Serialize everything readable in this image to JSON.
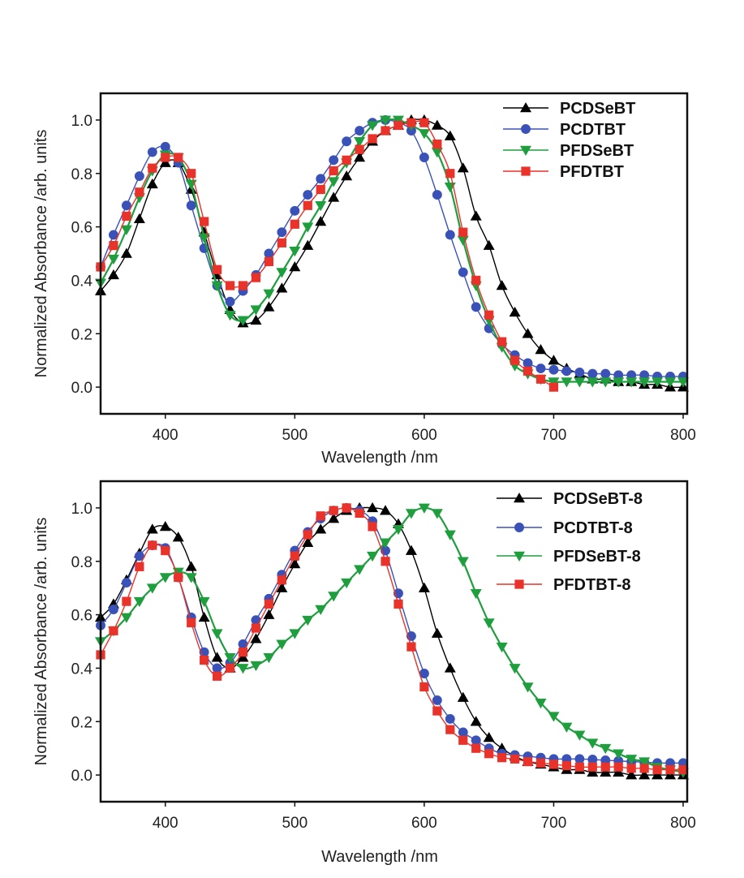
{
  "colors": {
    "black": "#000000",
    "blue": "#3a52b8",
    "green": "#1f9e3e",
    "red": "#e8322a"
  },
  "chart_data": [
    {
      "type": "line",
      "xlabel": "Wavelength /nm",
      "ylabel": "Normalized Absorbance /arb. units",
      "xlim": [
        350,
        800
      ],
      "ylim": [
        -0.1,
        1.1
      ],
      "xticks": [
        400,
        500,
        600,
        700,
        800
      ],
      "yticks": [
        "0.0",
        "0.2",
        "0.4",
        "0.6",
        "0.8",
        "1.0"
      ],
      "legend": "top-right",
      "x_start": 350,
      "x_step": 10,
      "series": [
        {
          "name": "PCDSeBT",
          "color": "#000000",
          "marker": "triangle-up",
          "values": [
            0.36,
            0.42,
            0.5,
            0.63,
            0.76,
            0.84,
            0.84,
            0.74,
            0.58,
            0.42,
            0.29,
            0.24,
            0.25,
            0.3,
            0.37,
            0.45,
            0.53,
            0.62,
            0.71,
            0.79,
            0.86,
            0.92,
            0.96,
            0.98,
            1.0,
            1.0,
            0.98,
            0.94,
            0.82,
            0.64,
            0.53,
            0.38,
            0.28,
            0.2,
            0.14,
            0.1,
            0.07,
            0.05,
            0.03,
            0.03,
            0.02,
            0.02,
            0.01,
            0.01,
            0.0,
            0.0
          ]
        },
        {
          "name": "PCDTBT",
          "color": "#3a52b8",
          "marker": "circle",
          "values": [
            0.45,
            0.57,
            0.68,
            0.79,
            0.88,
            0.9,
            0.84,
            0.68,
            0.52,
            0.38,
            0.32,
            0.36,
            0.42,
            0.5,
            0.58,
            0.66,
            0.72,
            0.78,
            0.85,
            0.92,
            0.96,
            0.99,
            1.0,
            0.99,
            0.96,
            0.86,
            0.72,
            0.57,
            0.43,
            0.3,
            0.22,
            0.16,
            0.12,
            0.09,
            0.07,
            0.065,
            0.06,
            0.055,
            0.05,
            0.05,
            0.045,
            0.045,
            0.045,
            0.04,
            0.04,
            0.04
          ]
        },
        {
          "name": "PFDSeBT",
          "color": "#1f9e3e",
          "marker": "triangle-down",
          "values": [
            0.39,
            0.48,
            0.59,
            0.71,
            0.81,
            0.87,
            0.86,
            0.76,
            0.56,
            0.38,
            0.27,
            0.25,
            0.29,
            0.35,
            0.43,
            0.51,
            0.6,
            0.68,
            0.77,
            0.84,
            0.92,
            0.98,
            1.0,
            1.0,
            0.98,
            0.95,
            0.88,
            0.75,
            0.55,
            0.38,
            0.25,
            0.15,
            0.08,
            0.05,
            0.03,
            0.02,
            0.02,
            0.02,
            0.02,
            0.02,
            0.02,
            0.02,
            0.02,
            0.02,
            0.02,
            0.02
          ]
        },
        {
          "name": "PFDTBT",
          "color": "#e8322a",
          "marker": "square",
          "values": [
            0.45,
            0.53,
            0.64,
            0.73,
            0.82,
            0.86,
            0.86,
            0.8,
            0.62,
            0.44,
            0.38,
            0.38,
            0.41,
            0.47,
            0.54,
            0.61,
            0.68,
            0.74,
            0.81,
            0.85,
            0.89,
            0.93,
            0.96,
            0.98,
            0.99,
            0.99,
            0.91,
            0.8,
            0.58,
            0.4,
            0.27,
            0.17,
            0.1,
            0.06,
            0.03,
            0.0
          ]
        }
      ]
    },
    {
      "type": "line",
      "xlabel": "Wavelength /nm",
      "ylabel": "Normalized Absorbance /arb. units",
      "xlim": [
        350,
        800
      ],
      "ylim": [
        -0.1,
        1.1
      ],
      "xticks": [
        400,
        500,
        600,
        700,
        800
      ],
      "yticks": [
        "0.0",
        "0.2",
        "0.4",
        "0.6",
        "0.8",
        "1.0"
      ],
      "legend": "top-right",
      "x_start": 350,
      "x_step": 10,
      "series": [
        {
          "name": "PCDSeBT-8",
          "color": "#000000",
          "marker": "triangle-up",
          "values": [
            0.59,
            0.64,
            0.73,
            0.83,
            0.92,
            0.93,
            0.89,
            0.78,
            0.59,
            0.44,
            0.4,
            0.44,
            0.51,
            0.6,
            0.7,
            0.79,
            0.87,
            0.92,
            0.96,
            0.99,
            1.0,
            1.0,
            0.99,
            0.94,
            0.84,
            0.7,
            0.53,
            0.4,
            0.29,
            0.2,
            0.14,
            0.1,
            0.07,
            0.05,
            0.04,
            0.03,
            0.02,
            0.02,
            0.01,
            0.01,
            0.01,
            0.0,
            0.0,
            0.0,
            0.0,
            0.0
          ]
        },
        {
          "name": "PCDTBT-8",
          "color": "#3a52b8",
          "marker": "circle",
          "values": [
            0.56,
            0.62,
            0.72,
            0.82,
            0.86,
            0.85,
            0.74,
            0.59,
            0.46,
            0.4,
            0.42,
            0.49,
            0.58,
            0.66,
            0.75,
            0.84,
            0.91,
            0.96,
            0.99,
            1.0,
            0.99,
            0.95,
            0.84,
            0.68,
            0.52,
            0.38,
            0.28,
            0.21,
            0.16,
            0.13,
            0.1,
            0.08,
            0.075,
            0.07,
            0.065,
            0.06,
            0.06,
            0.06,
            0.058,
            0.055,
            0.053,
            0.05,
            0.048,
            0.045,
            0.045,
            0.045
          ]
        },
        {
          "name": "PFDSeBT-8",
          "color": "#1f9e3e",
          "marker": "triangle-down",
          "values": [
            0.5,
            0.54,
            0.59,
            0.65,
            0.7,
            0.74,
            0.76,
            0.74,
            0.65,
            0.53,
            0.44,
            0.4,
            0.41,
            0.44,
            0.49,
            0.53,
            0.58,
            0.62,
            0.67,
            0.72,
            0.77,
            0.82,
            0.87,
            0.92,
            0.98,
            1.0,
            0.98,
            0.9,
            0.8,
            0.68,
            0.57,
            0.48,
            0.4,
            0.33,
            0.27,
            0.22,
            0.18,
            0.15,
            0.12,
            0.1,
            0.08,
            0.06,
            0.05,
            0.03,
            0.02,
            0.01
          ]
        },
        {
          "name": "PFDTBT-8",
          "color": "#e8322a",
          "marker": "square",
          "values": [
            0.45,
            0.54,
            0.65,
            0.78,
            0.86,
            0.84,
            0.74,
            0.57,
            0.43,
            0.37,
            0.4,
            0.46,
            0.55,
            0.64,
            0.73,
            0.82,
            0.9,
            0.97,
            0.99,
            1.0,
            0.98,
            0.93,
            0.8,
            0.64,
            0.48,
            0.33,
            0.24,
            0.17,
            0.13,
            0.1,
            0.08,
            0.065,
            0.06,
            0.05,
            0.045,
            0.04,
            0.035,
            0.03,
            0.03,
            0.03,
            0.03,
            0.025,
            0.025,
            0.02,
            0.02,
            0.02
          ]
        }
      ]
    }
  ]
}
